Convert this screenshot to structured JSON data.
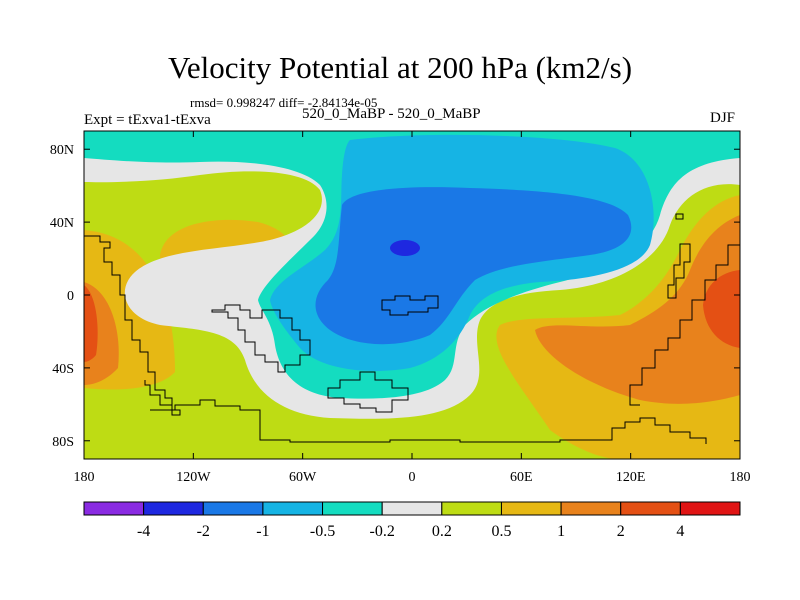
{
  "chart_data": {
    "type": "heatmap",
    "subtype": "filled-contour-map",
    "title": "Velocity Potential at 200 hPa (km2/s)",
    "stats": "rmsd= 0.998247 diff= -2.84134e-05",
    "experiment": "Expt = tExva1-tExva",
    "case": "520_0_MaBP - 520_0_MaBP",
    "season": "DJF",
    "xlabel": "",
    "ylabel": "",
    "xlim": [
      -180,
      180
    ],
    "ylim": [
      -90,
      90
    ],
    "x_ticks": [
      {
        "value": -180,
        "label": "180"
      },
      {
        "value": -120,
        "label": "120W"
      },
      {
        "value": -60,
        "label": "60W"
      },
      {
        "value": 0,
        "label": "0"
      },
      {
        "value": 60,
        "label": "60E"
      },
      {
        "value": 120,
        "label": "120E"
      },
      {
        "value": 180,
        "label": "180"
      }
    ],
    "y_ticks": [
      {
        "value": 80,
        "label": "80N"
      },
      {
        "value": 40,
        "label": "40N"
      },
      {
        "value": 0,
        "label": "0"
      },
      {
        "value": -40,
        "label": "40S"
      },
      {
        "value": -80,
        "label": "80S"
      }
    ],
    "contour_levels": [
      "-4",
      "-2",
      "-1",
      "-0.5",
      "-0.2",
      "0.2",
      "0.5",
      "1",
      "2",
      "4"
    ],
    "colorbar_colors": [
      "#8a2be2",
      "#1e28e0",
      "#1a78e6",
      "#16b4e4",
      "#14dcc0",
      "#e6e6e6",
      "#bedc14",
      "#e6b814",
      "#e8821c",
      "#e45014",
      "#e01414"
    ],
    "extrema": {
      "minimum_near": {
        "lon": -5,
        "lat": 25,
        "bin": "-4 to -2"
      },
      "maximum_near": {
        "lon": 165,
        "lat": 0,
        "bin": "2 to 4"
      }
    }
  }
}
